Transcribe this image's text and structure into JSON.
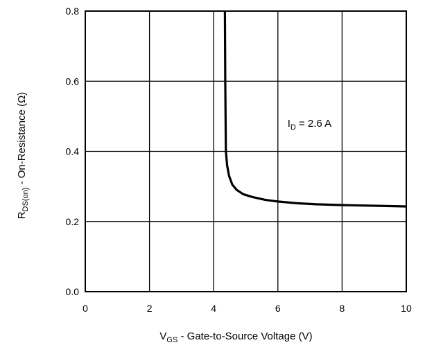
{
  "chart_data": {
    "type": "line",
    "xlabel": {
      "main": "V",
      "sub": "GS",
      "rest": " - Gate-to-Source Voltage (V)"
    },
    "ylabel": {
      "main": "R",
      "sub": "DS(on)",
      "rest": " - On-Resistance (Ω)"
    },
    "xlim": [
      0,
      10
    ],
    "ylim": [
      0,
      0.8
    ],
    "xticks": [
      0,
      2,
      4,
      6,
      8,
      10
    ],
    "xtick_labels": [
      "0",
      "2",
      "4",
      "6",
      "8",
      "10"
    ],
    "yticks": [
      0,
      0.2,
      0.4,
      0.6,
      0.8
    ],
    "ytick_labels": [
      "0.0",
      "0.2",
      "0.4",
      "0.6",
      "0.8"
    ],
    "grid": true,
    "annotation": {
      "main": "I",
      "sub": "D",
      "rest": " = 2.6 A",
      "x": 6.3,
      "y": 0.48
    },
    "series": [
      {
        "x": [
          4.35,
          4.36,
          4.38,
          4.42,
          4.48,
          4.58,
          4.72,
          4.92,
          5.2,
          5.6,
          6.0,
          6.6,
          7.2,
          8.0,
          9.0,
          10.0
        ],
        "y": [
          0.8,
          0.6,
          0.4,
          0.36,
          0.33,
          0.305,
          0.29,
          0.278,
          0.27,
          0.262,
          0.257,
          0.252,
          0.249,
          0.247,
          0.245,
          0.243
        ]
      }
    ]
  }
}
